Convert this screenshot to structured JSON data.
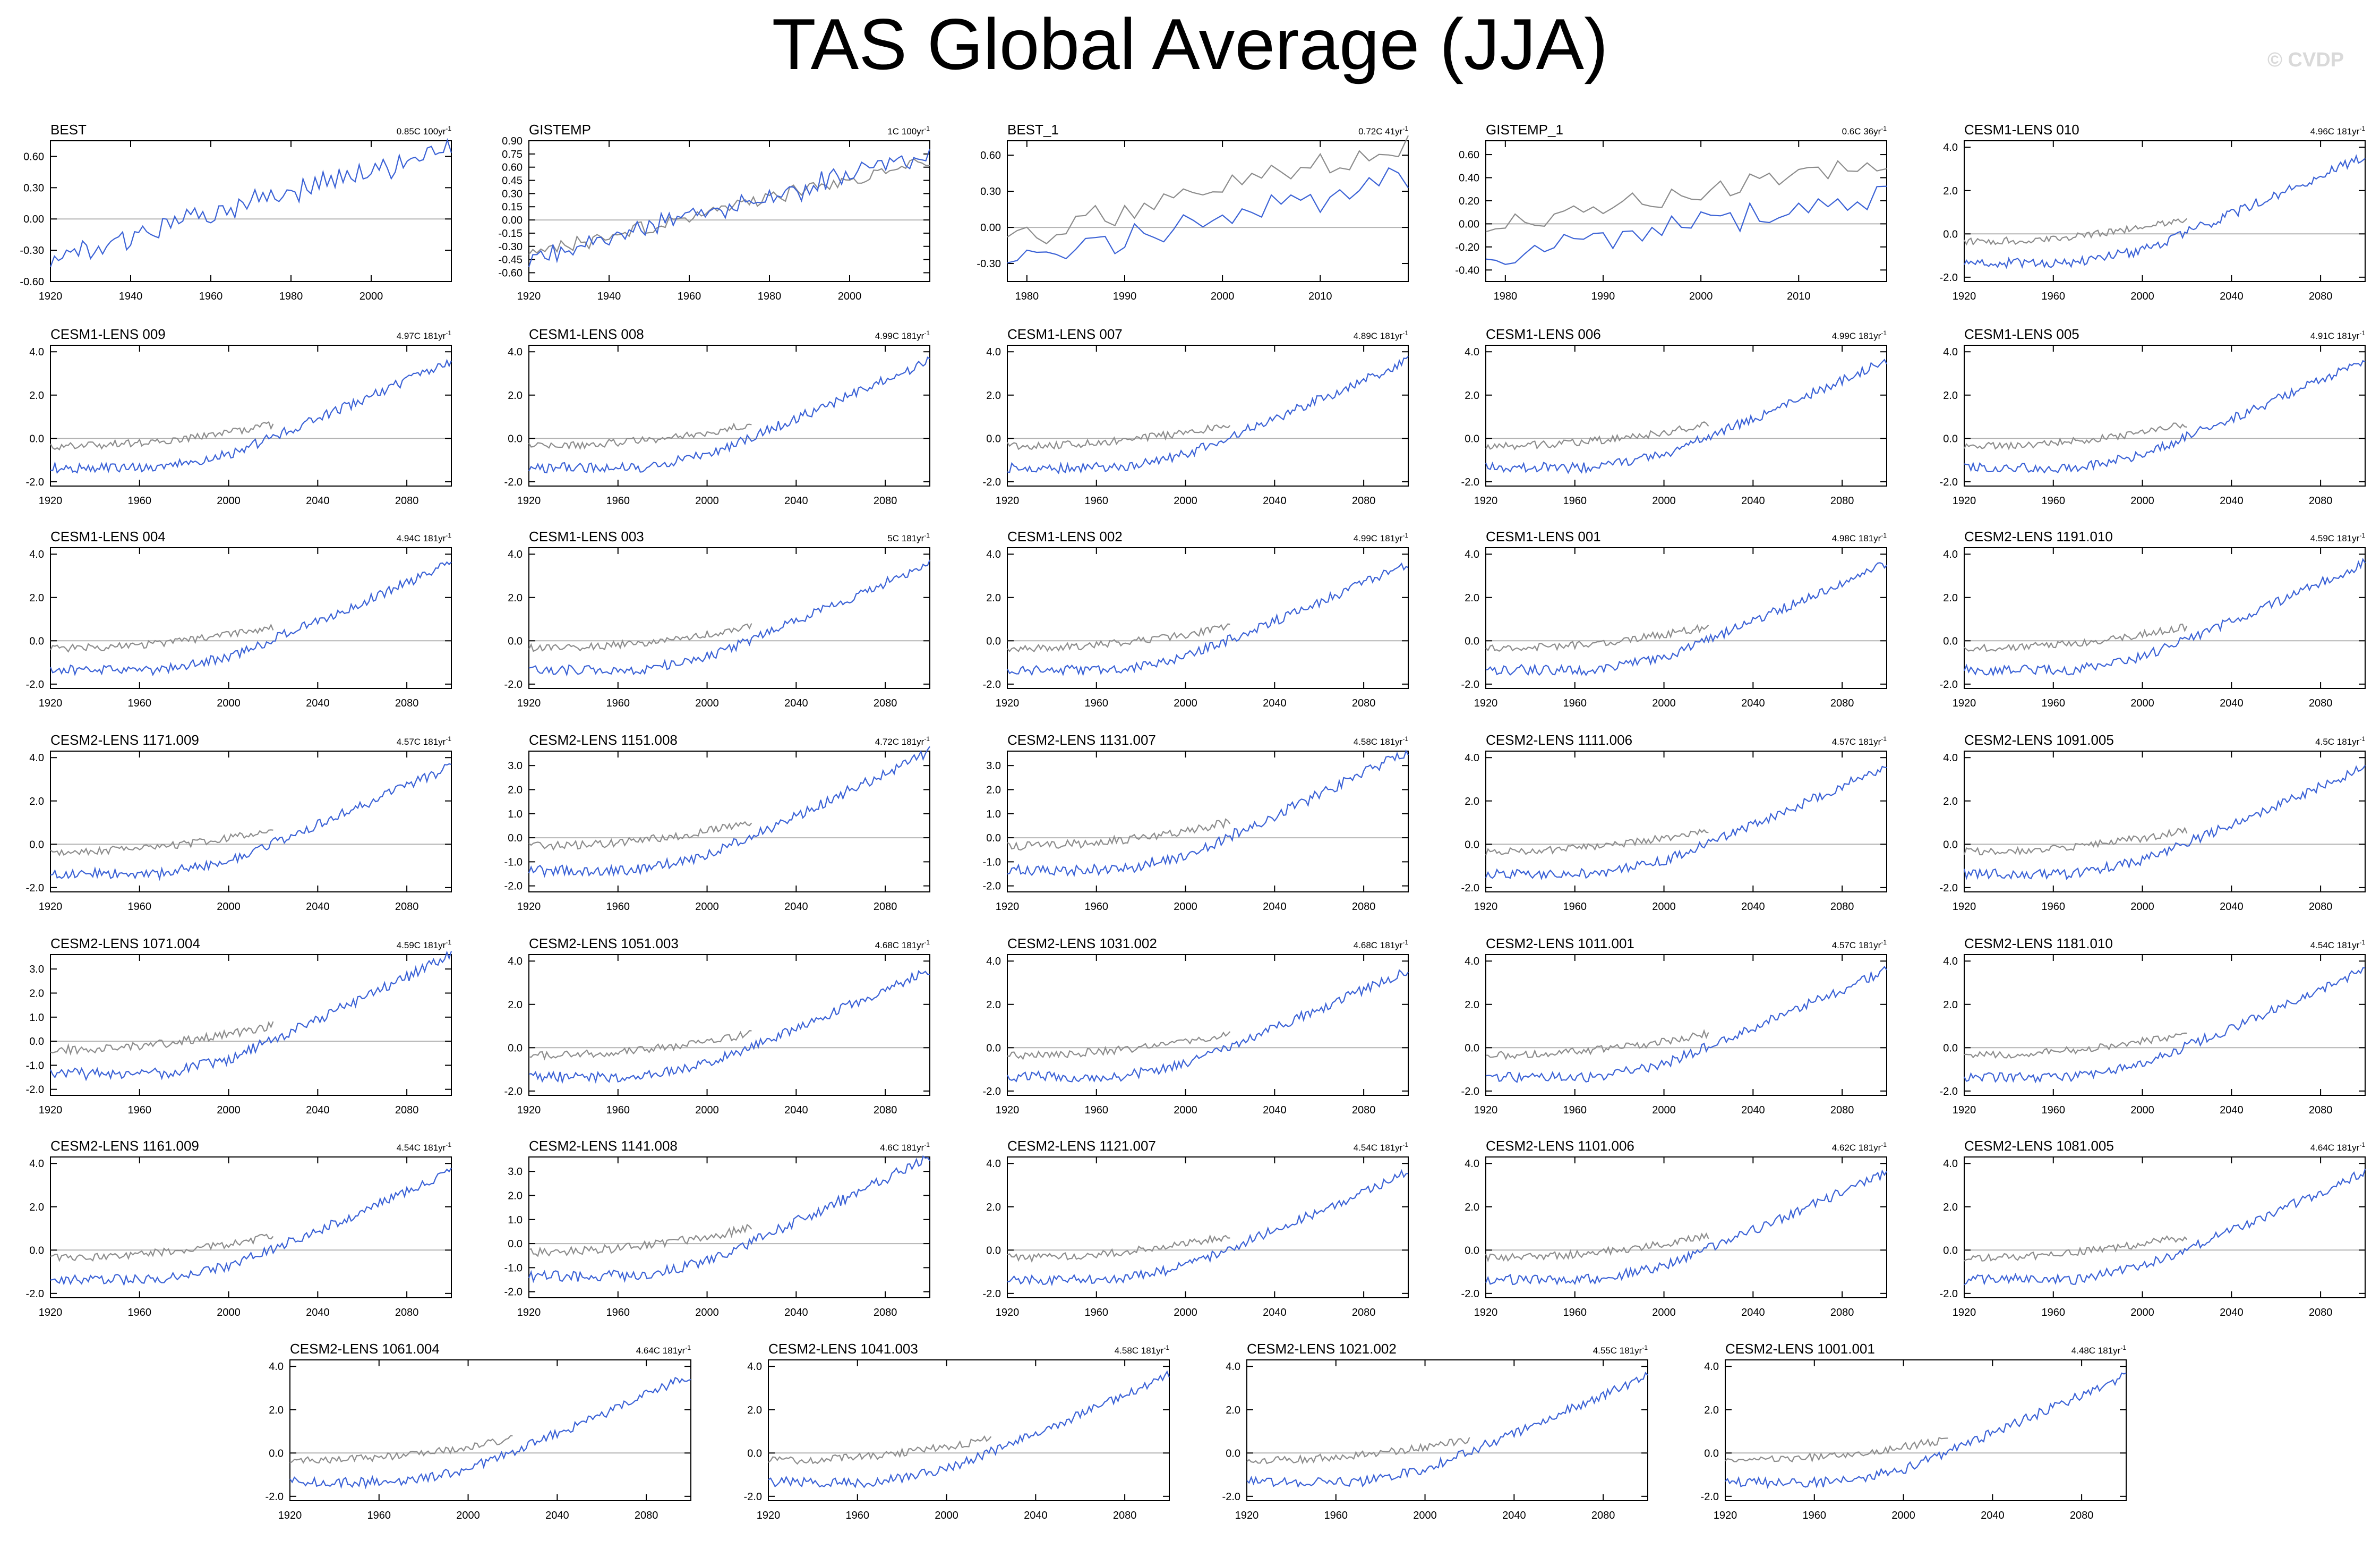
{
  "figure": {
    "title": "TAS Global Average (JJA)",
    "credit": "© CVDP",
    "colors": {
      "model": "#3b62d6",
      "observation": "#8c8c8c",
      "zero_line": "#b4b4b4",
      "axis": "#000000"
    }
  },
  "chart_data": [
    {
      "type": "line",
      "title": "BEST",
      "trend": "0.85C 100yr",
      "xlim": [
        1920,
        2020
      ],
      "ylim": [
        -0.6,
        0.75
      ],
      "xticks": [
        1920,
        1940,
        1960,
        1980,
        2000
      ],
      "yticks": [
        -0.6,
        -0.3,
        0.0,
        0.3,
        0.6
      ],
      "ytick_labels": [
        "-0.60",
        "-0.30",
        "0.00",
        "0.30",
        "0.60"
      ],
      "series": [
        {
          "style": "model",
          "x_start": 1920,
          "x_end": 2020,
          "start": -0.38,
          "end": 0.67,
          "noise": 0.1,
          "seed": 1
        }
      ]
    },
    {
      "type": "line",
      "title": "GISTEMP",
      "trend": "1C 100yr",
      "xlim": [
        1920,
        2020
      ],
      "ylim": [
        -0.7,
        0.9
      ],
      "xticks": [
        1920,
        1940,
        1960,
        1980,
        2000
      ],
      "yticks": [
        -0.6,
        -0.45,
        -0.3,
        -0.15,
        0.0,
        0.15,
        0.3,
        0.45,
        0.6,
        0.75,
        0.9
      ],
      "ytick_labels": [
        "-0.60",
        "-0.45",
        "-0.30",
        "-0.15",
        "0.00",
        "0.15",
        "0.30",
        "0.45",
        "0.60",
        "0.75",
        "0.90"
      ],
      "series": [
        {
          "style": "observation",
          "x_start": 1920,
          "x_end": 2020,
          "start": -0.4,
          "end": 0.68,
          "noise": 0.07,
          "seed": 3
        },
        {
          "style": "model",
          "x_start": 1920,
          "x_end": 2020,
          "start": -0.45,
          "end": 0.72,
          "noise": 0.1,
          "seed": 2
        }
      ]
    },
    {
      "type": "line",
      "title": "BEST_1",
      "trend": "0.72C 41yr",
      "xlim": [
        1978,
        2019
      ],
      "ylim": [
        -0.45,
        0.72
      ],
      "xticks": [
        1980,
        1990,
        2000,
        2010
      ],
      "yticks": [
        -0.3,
        0.0,
        0.3,
        0.6
      ],
      "ytick_labels": [
        "-0.30",
        "0.00",
        "0.30",
        "0.60"
      ],
      "series": [
        {
          "style": "observation",
          "x_start": 1978,
          "x_end": 2019,
          "start": -0.08,
          "end": 0.68,
          "noise": 0.09,
          "seed": 5
        },
        {
          "style": "model",
          "x_start": 1978,
          "x_end": 2019,
          "start": -0.3,
          "end": 0.4,
          "noise": 0.1,
          "seed": 4
        }
      ]
    },
    {
      "type": "line",
      "title": "GISTEMP_1",
      "trend": "0.6C 36yr",
      "xlim": [
        1978,
        2019
      ],
      "ylim": [
        -0.5,
        0.72
      ],
      "xticks": [
        1980,
        1990,
        2000,
        2010
      ],
      "yticks": [
        -0.4,
        -0.2,
        0.0,
        0.2,
        0.4,
        0.6
      ],
      "ytick_labels": [
        "-0.40",
        "-0.20",
        "0.00",
        "0.20",
        "0.40",
        "0.60"
      ],
      "series": [
        {
          "style": "observation",
          "x_start": 1978,
          "x_end": 2019,
          "start": -0.06,
          "end": 0.55,
          "noise": 0.09,
          "seed": 7
        },
        {
          "style": "model",
          "x_start": 1978,
          "x_end": 2019,
          "start": -0.3,
          "end": 0.27,
          "noise": 0.1,
          "seed": 6
        }
      ]
    },
    {
      "type": "line",
      "title": "CESM1-LENS 010",
      "trend": "4.96C 181yr",
      "std": true,
      "seed": 10,
      "yticks": [
        -2,
        0,
        2,
        4
      ],
      "ytick_labels": [
        "-2.0",
        "0.0",
        "2.0",
        "4.0"
      ]
    },
    {
      "type": "line",
      "title": "CESM1-LENS 009",
      "trend": "4.97C 181yr",
      "std": true,
      "seed": 11,
      "yticks": [
        -2,
        0,
        2,
        4
      ],
      "ytick_labels": [
        "-2.0",
        "0.0",
        "2.0",
        "4.0"
      ]
    },
    {
      "type": "line",
      "title": "CESM1-LENS 008",
      "trend": "4.99C 181yr",
      "std": true,
      "seed": 12,
      "yticks": [
        -2,
        0,
        2,
        4
      ],
      "ytick_labels": [
        "-2.0",
        "0.0",
        "2.0",
        "4.0"
      ]
    },
    {
      "type": "line",
      "title": "CESM1-LENS 007",
      "trend": "4.89C 181yr",
      "std": true,
      "seed": 13,
      "yticks": [
        -2,
        0,
        2,
        4
      ],
      "ytick_labels": [
        "-2.0",
        "0.0",
        "2.0",
        "4.0"
      ]
    },
    {
      "type": "line",
      "title": "CESM1-LENS 006",
      "trend": "4.99C 181yr",
      "std": true,
      "seed": 14,
      "yticks": [
        -2,
        0,
        2,
        4
      ],
      "ytick_labels": [
        "-2.0",
        "0.0",
        "2.0",
        "4.0"
      ]
    },
    {
      "type": "line",
      "title": "CESM1-LENS 005",
      "trend": "4.91C 181yr",
      "std": true,
      "seed": 15,
      "yticks": [
        -2,
        0,
        2,
        4
      ],
      "ytick_labels": [
        "-2.0",
        "0.0",
        "2.0",
        "4.0"
      ]
    },
    {
      "type": "line",
      "title": "CESM1-LENS 004",
      "trend": "4.94C 181yr",
      "std": true,
      "seed": 16,
      "yticks": [
        -2,
        0,
        2,
        4
      ],
      "ytick_labels": [
        "-2.0",
        "0.0",
        "2.0",
        "4.0"
      ]
    },
    {
      "type": "line",
      "title": "CESM1-LENS 003",
      "trend": "5C 181yr",
      "std": true,
      "seed": 17,
      "yticks": [
        -2,
        0,
        2,
        4
      ],
      "ytick_labels": [
        "-2.0",
        "0.0",
        "2.0",
        "4.0"
      ]
    },
    {
      "type": "line",
      "title": "CESM1-LENS 002",
      "trend": "4.99C 181yr",
      "std": true,
      "seed": 18,
      "yticks": [
        -2,
        0,
        2,
        4
      ],
      "ytick_labels": [
        "-2.0",
        "0.0",
        "2.0",
        "4.0"
      ]
    },
    {
      "type": "line",
      "title": "CESM1-LENS 001",
      "trend": "4.98C 181yr",
      "std": true,
      "seed": 19,
      "yticks": [
        -2,
        0,
        2,
        4
      ],
      "ytick_labels": [
        "-2.0",
        "0.0",
        "2.0",
        "4.0"
      ]
    },
    {
      "type": "line",
      "title": "CESM2-LENS 1191.010",
      "trend": "4.59C 181yr",
      "std": true,
      "seed": 20,
      "yticks": [
        -2,
        0,
        2,
        4
      ],
      "ytick_labels": [
        "-2.0",
        "0.0",
        "2.0",
        "4.0"
      ]
    },
    {
      "type": "line",
      "title": "CESM2-LENS 1171.009",
      "trend": "4.57C 181yr",
      "std": true,
      "seed": 21,
      "yticks": [
        -2,
        0,
        2,
        4
      ],
      "ytick_labels": [
        "-2.0",
        "0.0",
        "2.0",
        "4.0"
      ]
    },
    {
      "type": "line",
      "title": "CESM2-LENS 1151.008",
      "trend": "4.72C 181yr",
      "std": true,
      "seed": 22,
      "yticks": [
        -2,
        -1,
        0,
        1,
        2,
        3
      ],
      "ytick_labels": [
        "-2.0",
        "-1.0",
        "0.0",
        "1.0",
        "2.0",
        "3.0"
      ]
    },
    {
      "type": "line",
      "title": "CESM2-LENS 1131.007",
      "trend": "4.58C 181yr",
      "std": true,
      "seed": 23,
      "yticks": [
        -2,
        -1,
        0,
        1,
        2,
        3
      ],
      "ytick_labels": [
        "-2.0",
        "-1.0",
        "0.0",
        "1.0",
        "2.0",
        "3.0"
      ]
    },
    {
      "type": "line",
      "title": "CESM2-LENS 1111.006",
      "trend": "4.57C 181yr",
      "std": true,
      "seed": 24,
      "yticks": [
        -2,
        0,
        2,
        4
      ],
      "ytick_labels": [
        "-2.0",
        "0.0",
        "2.0",
        "4.0"
      ]
    },
    {
      "type": "line",
      "title": "CESM2-LENS 1091.005",
      "trend": "4.5C 181yr",
      "std": true,
      "seed": 25,
      "yticks": [
        -2,
        0,
        2,
        4
      ],
      "ytick_labels": [
        "-2.0",
        "0.0",
        "2.0",
        "4.0"
      ]
    },
    {
      "type": "line",
      "title": "CESM2-LENS 1071.004",
      "trend": "4.59C 181yr",
      "std": true,
      "seed": 26,
      "yticks": [
        -2,
        -1,
        0,
        1,
        2,
        3
      ],
      "ytick_labels": [
        "-2.0",
        "-1.0",
        "0.0",
        "1.0",
        "2.0",
        "3.0"
      ]
    },
    {
      "type": "line",
      "title": "CESM2-LENS 1051.003",
      "trend": "4.68C 181yr",
      "std": true,
      "seed": 27,
      "yticks": [
        -2,
        0,
        2,
        4
      ],
      "ytick_labels": [
        "-2.0",
        "0.0",
        "2.0",
        "4.0"
      ]
    },
    {
      "type": "line",
      "title": "CESM2-LENS 1031.002",
      "trend": "4.68C 181yr",
      "std": true,
      "seed": 28,
      "yticks": [
        -2,
        0,
        2,
        4
      ],
      "ytick_labels": [
        "-2.0",
        "0.0",
        "2.0",
        "4.0"
      ]
    },
    {
      "type": "line",
      "title": "CESM2-LENS 1011.001",
      "trend": "4.57C 181yr",
      "std": true,
      "seed": 29,
      "yticks": [
        -2,
        0,
        2,
        4
      ],
      "ytick_labels": [
        "-2.0",
        "0.0",
        "2.0",
        "4.0"
      ]
    },
    {
      "type": "line",
      "title": "CESM2-LENS 1181.010",
      "trend": "4.54C 181yr",
      "std": true,
      "seed": 30,
      "yticks": [
        -2,
        0,
        2,
        4
      ],
      "ytick_labels": [
        "-2.0",
        "0.0",
        "2.0",
        "4.0"
      ]
    },
    {
      "type": "line",
      "title": "CESM2-LENS 1161.009",
      "trend": "4.54C 181yr",
      "std": true,
      "seed": 31,
      "yticks": [
        -2,
        0,
        2,
        4
      ],
      "ytick_labels": [
        "-2.0",
        "0.0",
        "2.0",
        "4.0"
      ]
    },
    {
      "type": "line",
      "title": "CESM2-LENS 1141.008",
      "trend": "4.6C 181yr",
      "std": true,
      "seed": 32,
      "yticks": [
        -2,
        -1,
        0,
        1,
        2,
        3
      ],
      "ytick_labels": [
        "-2.0",
        "-1.0",
        "0.0",
        "1.0",
        "2.0",
        "3.0"
      ]
    },
    {
      "type": "line",
      "title": "CESM2-LENS 1121.007",
      "trend": "4.54C 181yr",
      "std": true,
      "seed": 33,
      "yticks": [
        -2,
        0,
        2,
        4
      ],
      "ytick_labels": [
        "-2.0",
        "0.0",
        "2.0",
        "4.0"
      ]
    },
    {
      "type": "line",
      "title": "CESM2-LENS 1101.006",
      "trend": "4.62C 181yr",
      "std": true,
      "seed": 34,
      "yticks": [
        -2,
        0,
        2,
        4
      ],
      "ytick_labels": [
        "-2.0",
        "0.0",
        "2.0",
        "4.0"
      ]
    },
    {
      "type": "line",
      "title": "CESM2-LENS 1081.005",
      "trend": "4.64C 181yr",
      "std": true,
      "seed": 35,
      "yticks": [
        -2,
        0,
        2,
        4
      ],
      "ytick_labels": [
        "-2.0",
        "0.0",
        "2.0",
        "4.0"
      ]
    },
    {
      "type": "line",
      "title": "CESM2-LENS 1061.004",
      "trend": "4.64C 181yr",
      "std": true,
      "seed": 36,
      "yticks": [
        -2,
        0,
        2,
        4
      ],
      "ytick_labels": [
        "-2.0",
        "0.0",
        "2.0",
        "4.0"
      ]
    },
    {
      "type": "line",
      "title": "CESM2-LENS 1041.003",
      "trend": "4.58C 181yr",
      "std": true,
      "seed": 37,
      "yticks": [
        -2,
        0,
        2,
        4
      ],
      "ytick_labels": [
        "-2.0",
        "0.0",
        "2.0",
        "4.0"
      ]
    },
    {
      "type": "line",
      "title": "CESM2-LENS 1021.002",
      "trend": "4.55C 181yr",
      "std": true,
      "seed": 38,
      "yticks": [
        -2,
        0,
        2,
        4
      ],
      "ytick_labels": [
        "-2.0",
        "0.0",
        "2.0",
        "4.0"
      ]
    },
    {
      "type": "line",
      "title": "CESM2-LENS 1001.001",
      "trend": "4.48C 181yr",
      "std": true,
      "seed": 39,
      "yticks": [
        -2,
        0,
        2,
        4
      ],
      "ytick_labels": [
        "-2.0",
        "0.0",
        "2.0",
        "4.0"
      ]
    }
  ]
}
